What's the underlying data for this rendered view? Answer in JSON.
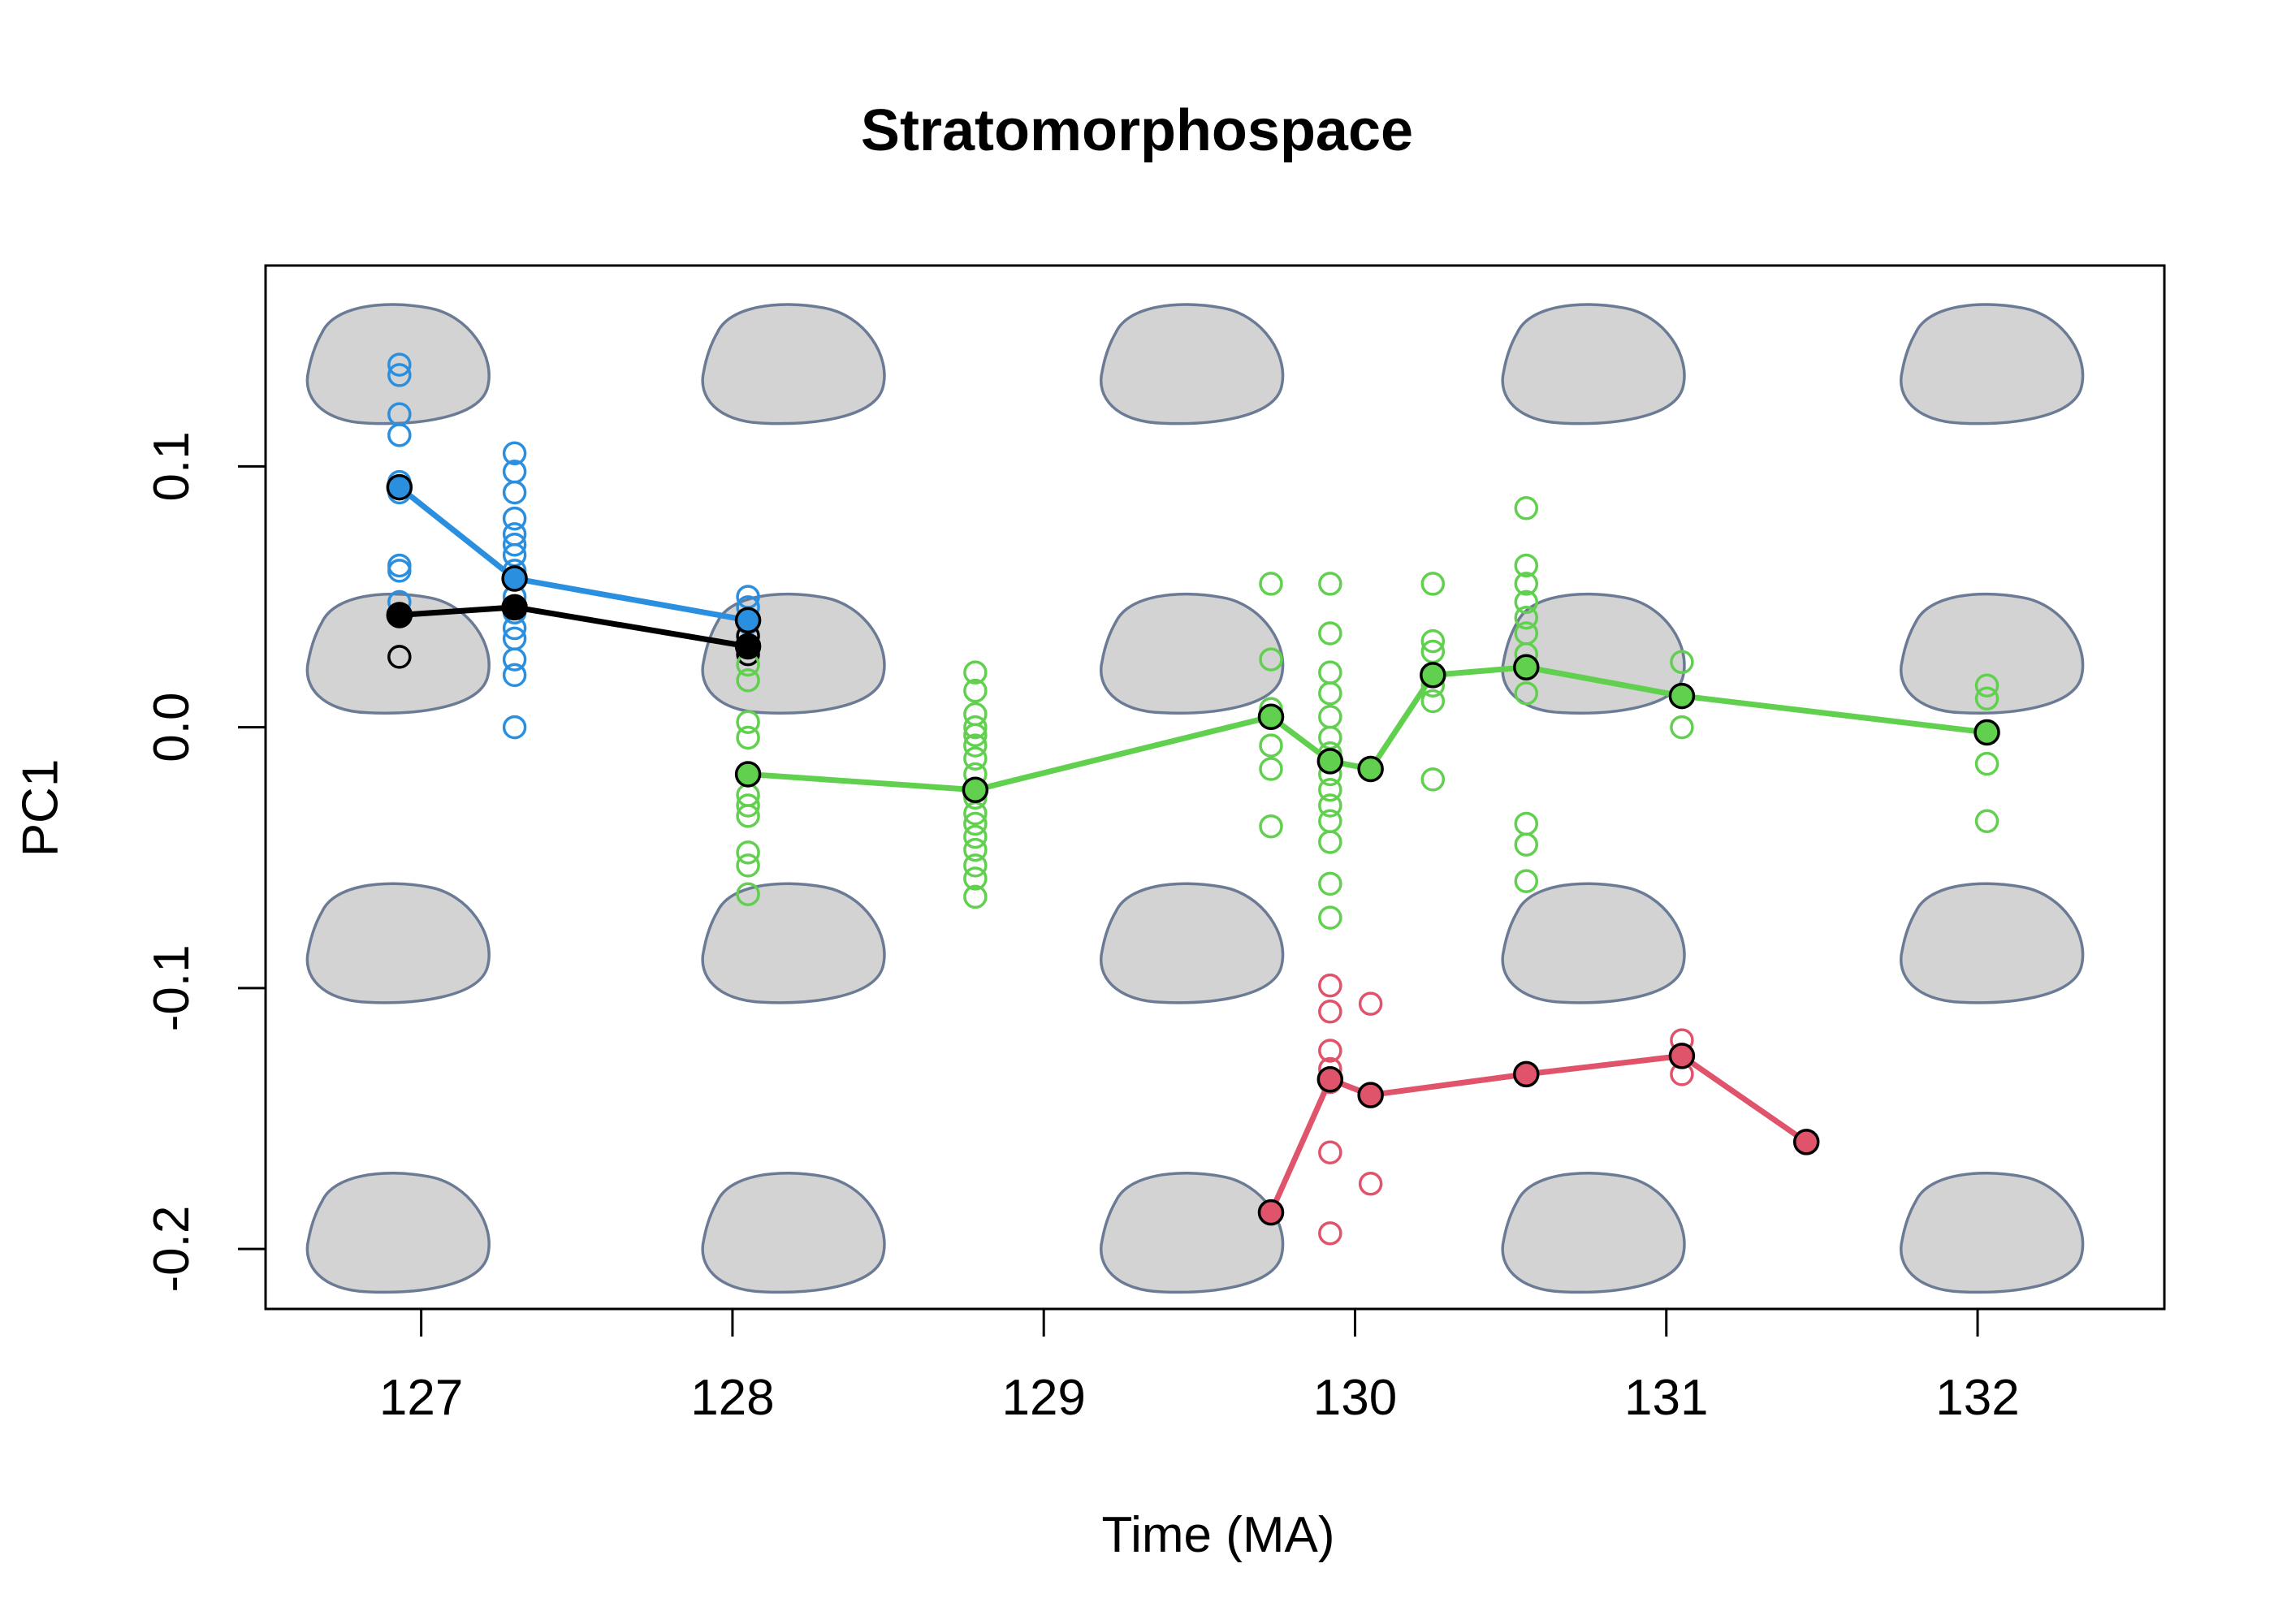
{
  "chart_data": {
    "type": "scatter",
    "title": "Stratomorphospace",
    "xlabel": "Time (MA)",
    "ylabel": "PC1",
    "xlim": [
      126.5,
      132.6
    ],
    "ylim": [
      -0.223,
      0.177
    ],
    "x_ticks": [
      127,
      128,
      129,
      130,
      131,
      132
    ],
    "y_ticks": [
      -0.2,
      -0.1,
      0.0,
      0.1
    ],
    "y_tick_labels": [
      "-0.2",
      "-0.1",
      "0.0",
      "0.1"
    ],
    "grid": false,
    "legend": "none",
    "background_shapes": {
      "fill": "#d3d3d3",
      "stroke": "#6b7b95",
      "columns_x": [
        126.93,
        128.2,
        129.48,
        130.77,
        132.05
      ],
      "rows_y": [
        0.139,
        0.028,
        -0.083,
        -0.194
      ]
    },
    "series": [
      {
        "color": "#2b8fdf",
        "mean_line": [
          [
            126.93,
            0.092
          ],
          [
            127.3,
            0.057
          ],
          [
            128.05,
            0.041
          ]
        ],
        "points": [
          [
            126.93,
            0.139
          ],
          [
            126.93,
            0.135
          ],
          [
            126.93,
            0.12
          ],
          [
            126.93,
            0.112
          ],
          [
            126.93,
            0.094
          ],
          [
            126.93,
            0.09
          ],
          [
            126.93,
            0.062
          ],
          [
            126.93,
            0.06
          ],
          [
            126.93,
            0.048
          ],
          [
            127.3,
            0.105
          ],
          [
            127.3,
            0.098
          ],
          [
            127.3,
            0.09
          ],
          [
            127.3,
            0.08
          ],
          [
            127.3,
            0.074
          ],
          [
            127.3,
            0.07
          ],
          [
            127.3,
            0.066
          ],
          [
            127.3,
            0.06
          ],
          [
            127.3,
            0.05
          ],
          [
            127.3,
            0.044
          ],
          [
            127.3,
            0.038
          ],
          [
            127.3,
            0.034
          ],
          [
            127.3,
            0.026
          ],
          [
            127.3,
            0.02
          ],
          [
            127.3,
            0.0
          ],
          [
            128.05,
            0.05
          ],
          [
            128.05,
            0.046
          ],
          [
            128.05,
            0.04
          ]
        ]
      },
      {
        "color": "#000000",
        "mean_line": [
          [
            126.93,
            0.043
          ],
          [
            127.3,
            0.046
          ],
          [
            128.05,
            0.031
          ]
        ],
        "points": [
          [
            126.93,
            0.027
          ],
          [
            128.05,
            0.035
          ],
          [
            128.05,
            0.028
          ]
        ]
      },
      {
        "color": "#61d04f",
        "mean_line": [
          [
            128.05,
            -0.018
          ],
          [
            128.78,
            -0.024
          ],
          [
            129.73,
            0.004
          ],
          [
            129.92,
            -0.013
          ],
          [
            130.05,
            -0.016
          ],
          [
            130.25,
            0.02
          ],
          [
            130.55,
            0.023
          ],
          [
            131.05,
            0.012
          ],
          [
            132.03,
            -0.002
          ]
        ],
        "points": [
          [
            128.05,
            0.024
          ],
          [
            128.05,
            0.018
          ],
          [
            128.05,
            0.002
          ],
          [
            128.05,
            -0.004
          ],
          [
            128.05,
            -0.018
          ],
          [
            128.05,
            -0.026
          ],
          [
            128.05,
            -0.03
          ],
          [
            128.05,
            -0.034
          ],
          [
            128.05,
            -0.048
          ],
          [
            128.05,
            -0.053
          ],
          [
            128.05,
            -0.064
          ],
          [
            128.78,
            0.021
          ],
          [
            128.78,
            0.014
          ],
          [
            128.78,
            0.005
          ],
          [
            128.78,
            0.0
          ],
          [
            128.78,
            -0.003
          ],
          [
            128.78,
            -0.007
          ],
          [
            128.78,
            -0.012
          ],
          [
            128.78,
            -0.018
          ],
          [
            128.78,
            -0.027
          ],
          [
            128.78,
            -0.033
          ],
          [
            128.78,
            -0.037
          ],
          [
            128.78,
            -0.042
          ],
          [
            128.78,
            -0.047
          ],
          [
            128.78,
            -0.053
          ],
          [
            128.78,
            -0.058
          ],
          [
            128.78,
            -0.065
          ],
          [
            129.73,
            0.055
          ],
          [
            129.73,
            0.026
          ],
          [
            129.73,
            0.007
          ],
          [
            129.73,
            -0.007
          ],
          [
            129.73,
            -0.016
          ],
          [
            129.73,
            -0.038
          ],
          [
            129.92,
            0.055
          ],
          [
            129.92,
            0.036
          ],
          [
            129.92,
            0.021
          ],
          [
            129.92,
            0.013
          ],
          [
            129.92,
            0.004
          ],
          [
            129.92,
            -0.004
          ],
          [
            129.92,
            -0.01
          ],
          [
            129.92,
            -0.018
          ],
          [
            129.92,
            -0.024
          ],
          [
            129.92,
            -0.03
          ],
          [
            129.92,
            -0.036
          ],
          [
            129.92,
            -0.044
          ],
          [
            129.92,
            -0.06
          ],
          [
            129.92,
            -0.073
          ],
          [
            130.25,
            0.055
          ],
          [
            130.25,
            0.033
          ],
          [
            130.25,
            0.029
          ],
          [
            130.25,
            0.016
          ],
          [
            130.25,
            0.01
          ],
          [
            130.25,
            -0.02
          ],
          [
            130.55,
            0.084
          ],
          [
            130.55,
            0.062
          ],
          [
            130.55,
            0.055
          ],
          [
            130.55,
            0.048
          ],
          [
            130.55,
            0.042
          ],
          [
            130.55,
            0.036
          ],
          [
            130.55,
            0.028
          ],
          [
            130.55,
            0.013
          ],
          [
            130.55,
            -0.037
          ],
          [
            130.55,
            -0.045
          ],
          [
            130.55,
            -0.059
          ],
          [
            131.05,
            0.025
          ],
          [
            131.05,
            0.0
          ],
          [
            132.03,
            0.016
          ],
          [
            132.03,
            0.011
          ],
          [
            132.03,
            -0.014
          ],
          [
            132.03,
            -0.036
          ]
        ]
      },
      {
        "color": "#df536b",
        "mean_line": [
          [
            129.73,
            -0.186
          ],
          [
            129.92,
            -0.135
          ],
          [
            130.05,
            -0.141
          ],
          [
            130.55,
            -0.133
          ],
          [
            131.05,
            -0.126
          ],
          [
            131.45,
            -0.159
          ]
        ],
        "points": [
          [
            129.92,
            -0.099
          ],
          [
            129.92,
            -0.109
          ],
          [
            129.92,
            -0.124
          ],
          [
            129.92,
            -0.131
          ],
          [
            129.92,
            -0.136
          ],
          [
            129.92,
            -0.163
          ],
          [
            129.92,
            -0.194
          ],
          [
            130.05,
            -0.106
          ],
          [
            130.05,
            -0.175
          ],
          [
            131.05,
            -0.12
          ],
          [
            131.05,
            -0.133
          ]
        ]
      }
    ]
  }
}
